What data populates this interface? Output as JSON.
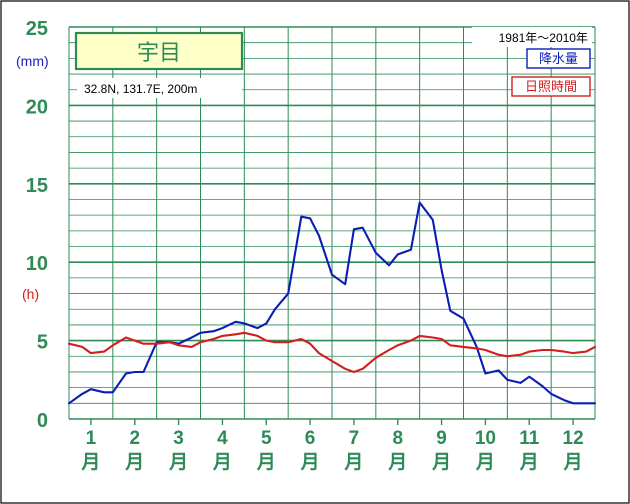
{
  "chart_data": {
    "type": "line",
    "station": "宇目",
    "location": "32.8N,  131.7E,  200m",
    "period": "1981年〜2010年",
    "left_unit_precip": "(mm)",
    "left_unit_sun": "(h)",
    "y_ticks": [
      0,
      5,
      10,
      15,
      20,
      25
    ],
    "ylim": [
      0,
      25
    ],
    "months": [
      "1",
      "2",
      "3",
      "4",
      "5",
      "6",
      "7",
      "8",
      "9",
      "10",
      "11",
      "12"
    ],
    "month_suffix": "月",
    "x_range": [
      0.5,
      12.5
    ],
    "series": [
      {
        "name": "降水量",
        "color": "#0a1eb4",
        "x": [
          0.5,
          0.8,
          1.0,
          1.3,
          1.5,
          1.8,
          2.0,
          2.2,
          2.5,
          2.8,
          3.0,
          3.3,
          3.5,
          3.8,
          4.0,
          4.3,
          4.5,
          4.8,
          5.0,
          5.2,
          5.5,
          5.8,
          6.0,
          6.2,
          6.5,
          6.8,
          7.0,
          7.2,
          7.5,
          7.8,
          8.0,
          8.3,
          8.5,
          8.8,
          9.0,
          9.2,
          9.5,
          9.8,
          10.0,
          10.3,
          10.5,
          10.8,
          11.0,
          11.3,
          11.5,
          11.8,
          12.0,
          12.3,
          12.5
        ],
        "y": [
          1.0,
          1.6,
          1.9,
          1.7,
          1.7,
          2.9,
          3.0,
          3.0,
          4.9,
          4.9,
          4.8,
          5.2,
          5.5,
          5.6,
          5.8,
          6.2,
          6.1,
          5.8,
          6.1,
          7.0,
          8.0,
          12.9,
          12.8,
          11.7,
          9.2,
          8.6,
          12.1,
          12.2,
          10.6,
          9.8,
          10.5,
          10.8,
          13.8,
          12.7,
          9.5,
          6.9,
          6.4,
          4.6,
          2.9,
          3.1,
          2.5,
          2.3,
          2.7,
          2.1,
          1.6,
          1.2,
          1.0,
          1.0,
          1.0
        ]
      },
      {
        "name": "日照時間",
        "color": "#d21e1e",
        "x": [
          0.5,
          0.8,
          1.0,
          1.3,
          1.5,
          1.8,
          2.0,
          2.2,
          2.5,
          2.8,
          3.0,
          3.3,
          3.5,
          3.8,
          4.0,
          4.3,
          4.5,
          4.8,
          5.0,
          5.2,
          5.5,
          5.8,
          6.0,
          6.2,
          6.5,
          6.8,
          7.0,
          7.2,
          7.5,
          7.8,
          8.0,
          8.3,
          8.5,
          8.8,
          9.0,
          9.2,
          9.5,
          9.8,
          10.0,
          10.3,
          10.5,
          10.8,
          11.0,
          11.3,
          11.5,
          11.8,
          12.0,
          12.3,
          12.5
        ],
        "y": [
          4.8,
          4.6,
          4.2,
          4.3,
          4.7,
          5.2,
          5.0,
          4.8,
          4.8,
          4.9,
          4.7,
          4.6,
          4.9,
          5.1,
          5.3,
          5.4,
          5.5,
          5.3,
          5.0,
          4.9,
          4.9,
          5.1,
          4.8,
          4.2,
          3.7,
          3.2,
          3.0,
          3.2,
          3.9,
          4.4,
          4.7,
          5.0,
          5.3,
          5.2,
          5.1,
          4.7,
          4.6,
          4.5,
          4.4,
          4.1,
          4.0,
          4.1,
          4.3,
          4.4,
          4.4,
          4.3,
          4.2,
          4.3,
          4.6
        ]
      }
    ]
  }
}
